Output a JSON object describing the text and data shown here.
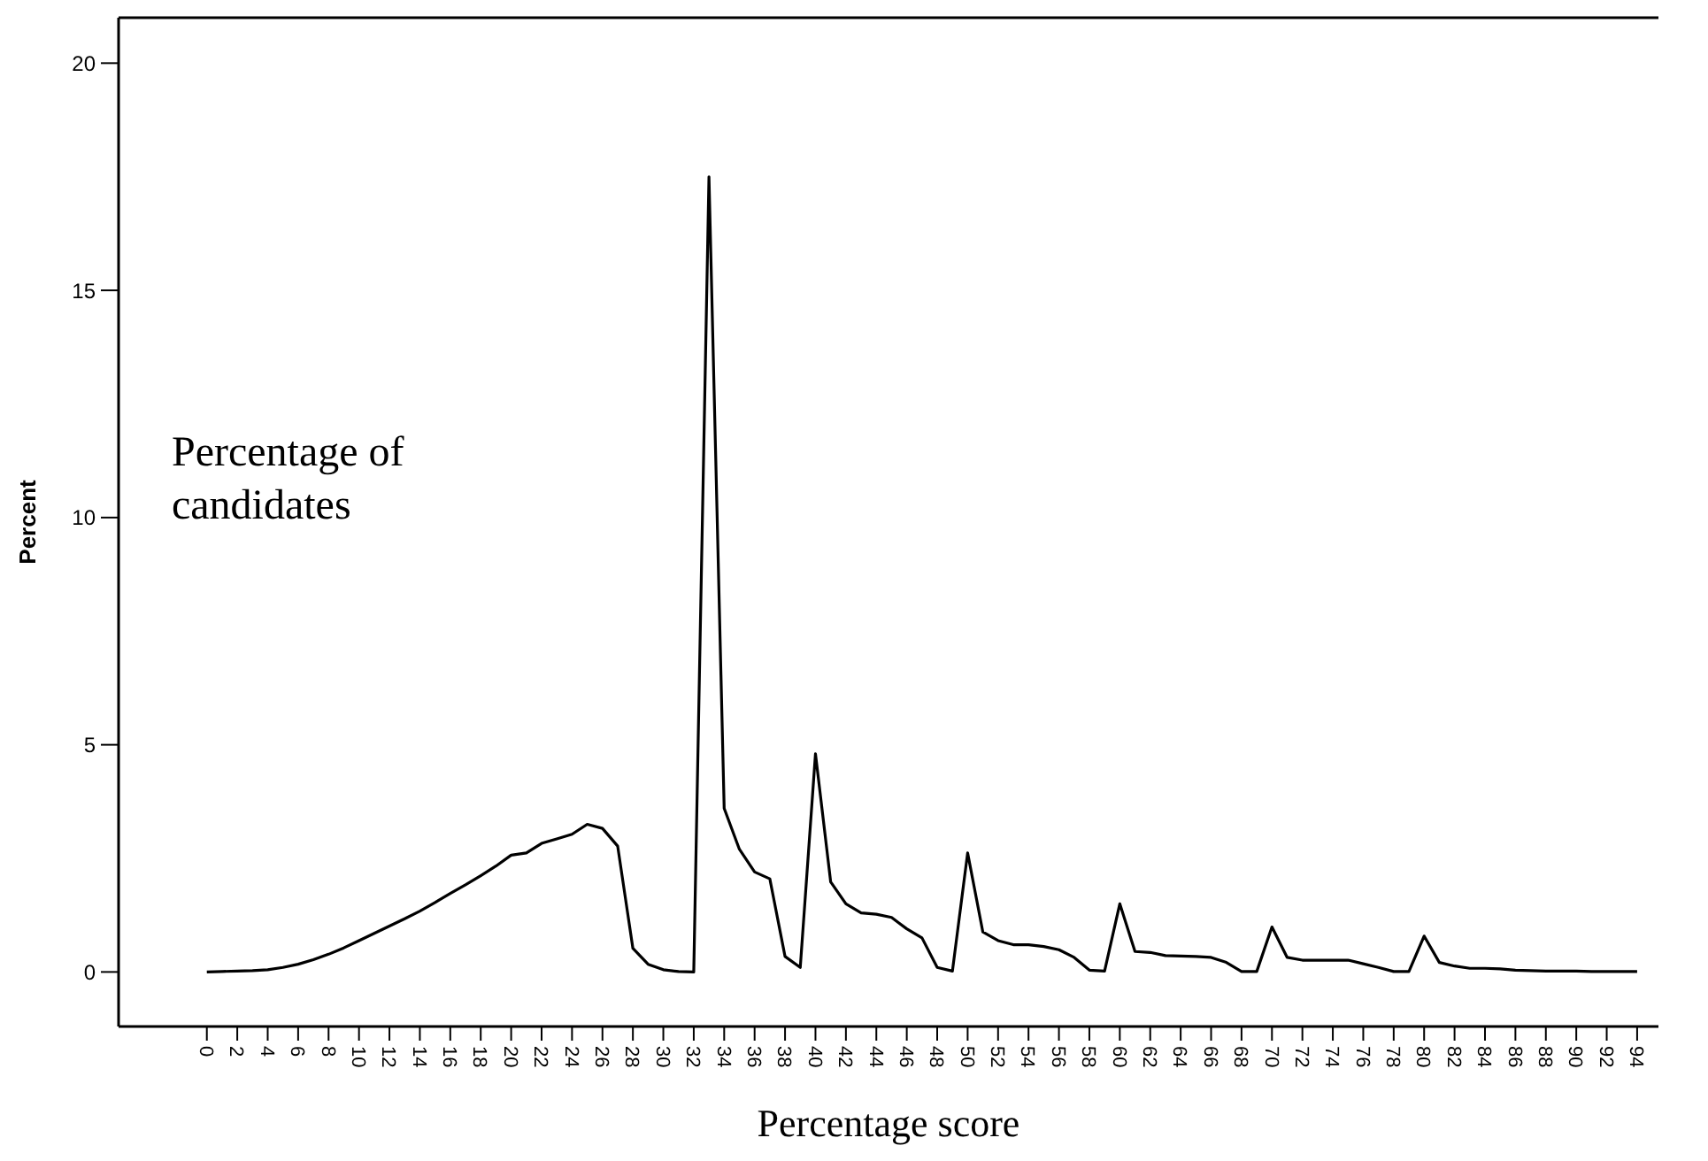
{
  "chart_data": {
    "type": "line",
    "xlabel": "Percentage score",
    "ylabel": "Percent",
    "annotations": [
      "Percentage of candidates"
    ],
    "x": [
      0,
      1,
      2,
      3,
      4,
      5,
      6,
      7,
      8,
      9,
      10,
      11,
      12,
      13,
      14,
      15,
      16,
      17,
      18,
      19,
      20,
      21,
      22,
      23,
      24,
      25,
      26,
      27,
      28,
      29,
      30,
      31,
      32,
      33,
      34,
      35,
      36,
      37,
      38,
      39,
      40,
      41,
      42,
      43,
      44,
      45,
      46,
      47,
      48,
      49,
      50,
      51,
      52,
      53,
      54,
      55,
      56,
      57,
      58,
      59,
      60,
      61,
      62,
      63,
      64,
      65,
      66,
      67,
      68,
      69,
      70,
      71,
      72,
      73,
      74,
      75,
      76,
      77,
      78,
      79,
      80,
      81,
      82,
      83,
      84,
      85,
      86,
      87,
      88,
      89,
      90,
      91,
      92,
      93,
      94
    ],
    "series": [
      {
        "color": "#000000",
        "values": [
          0,
          0.01,
          0.02,
          0.03,
          0.05,
          0.1,
          0.17,
          0.27,
          0.39,
          0.53,
          0.69,
          0.85,
          1.01,
          1.17,
          1.34,
          1.53,
          1.73,
          1.92,
          2.12,
          2.33,
          2.57,
          2.62,
          2.83,
          2.93,
          3.03,
          3.25,
          3.16,
          2.77,
          0.52,
          0.17,
          0.05,
          0.01,
          0,
          17.5,
          3.6,
          2.7,
          2.2,
          2.05,
          0.34,
          0.1,
          4.8,
          1.98,
          1.5,
          1.3,
          1.27,
          1.2,
          0.95,
          0.75,
          0.1,
          0.02,
          2.62,
          0.88,
          0.69,
          0.6,
          0.6,
          0.56,
          0.49,
          0.32,
          0.04,
          0.02,
          1.5,
          0.45,
          0.43,
          0.36,
          0.35,
          0.34,
          0.32,
          0.21,
          0.01,
          0.01,
          0.99,
          0.32,
          0.26,
          0.26,
          0.26,
          0.26,
          0.18,
          0.1,
          0.01,
          0.01,
          0.79,
          0.21,
          0.13,
          0.08,
          0.08,
          0.07,
          0.04,
          0.03,
          0.02,
          0.02,
          0.02,
          0.01,
          0.01,
          0.01,
          0.01
        ]
      }
    ],
    "xlim": [
      -5.8,
      95.4
    ],
    "xticks": [
      0,
      2,
      4,
      6,
      8,
      10,
      12,
      14,
      16,
      18,
      20,
      22,
      24,
      26,
      28,
      30,
      32,
      34,
      36,
      38,
      40,
      42,
      44,
      46,
      48,
      50,
      52,
      54,
      56,
      58,
      60,
      62,
      64,
      66,
      68,
      70,
      72,
      74,
      76,
      78,
      80,
      82,
      84,
      86,
      88,
      90,
      92,
      94
    ],
    "ylim": [
      -1.2,
      21
    ],
    "yticks": [
      0,
      5,
      10,
      15,
      20
    ],
    "marker": "none",
    "line_style": "solid"
  }
}
